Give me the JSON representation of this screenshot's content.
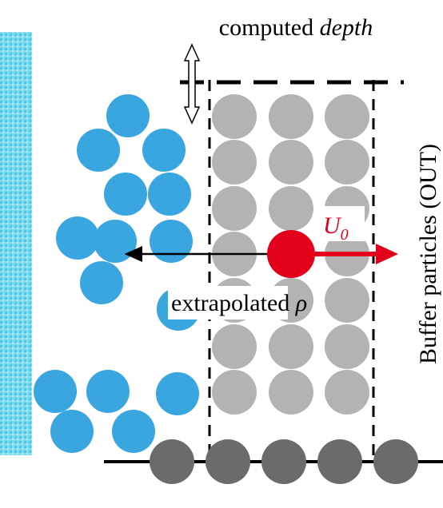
{
  "top_label": {
    "text": "computed",
    "emphasis": "depth"
  },
  "velocity_label": {
    "symbol": "U",
    "subscript": "0"
  },
  "density_label": {
    "text": "extrapolated",
    "symbol": "ρ"
  },
  "side_label": "Buffer particles (OUT)"
}
